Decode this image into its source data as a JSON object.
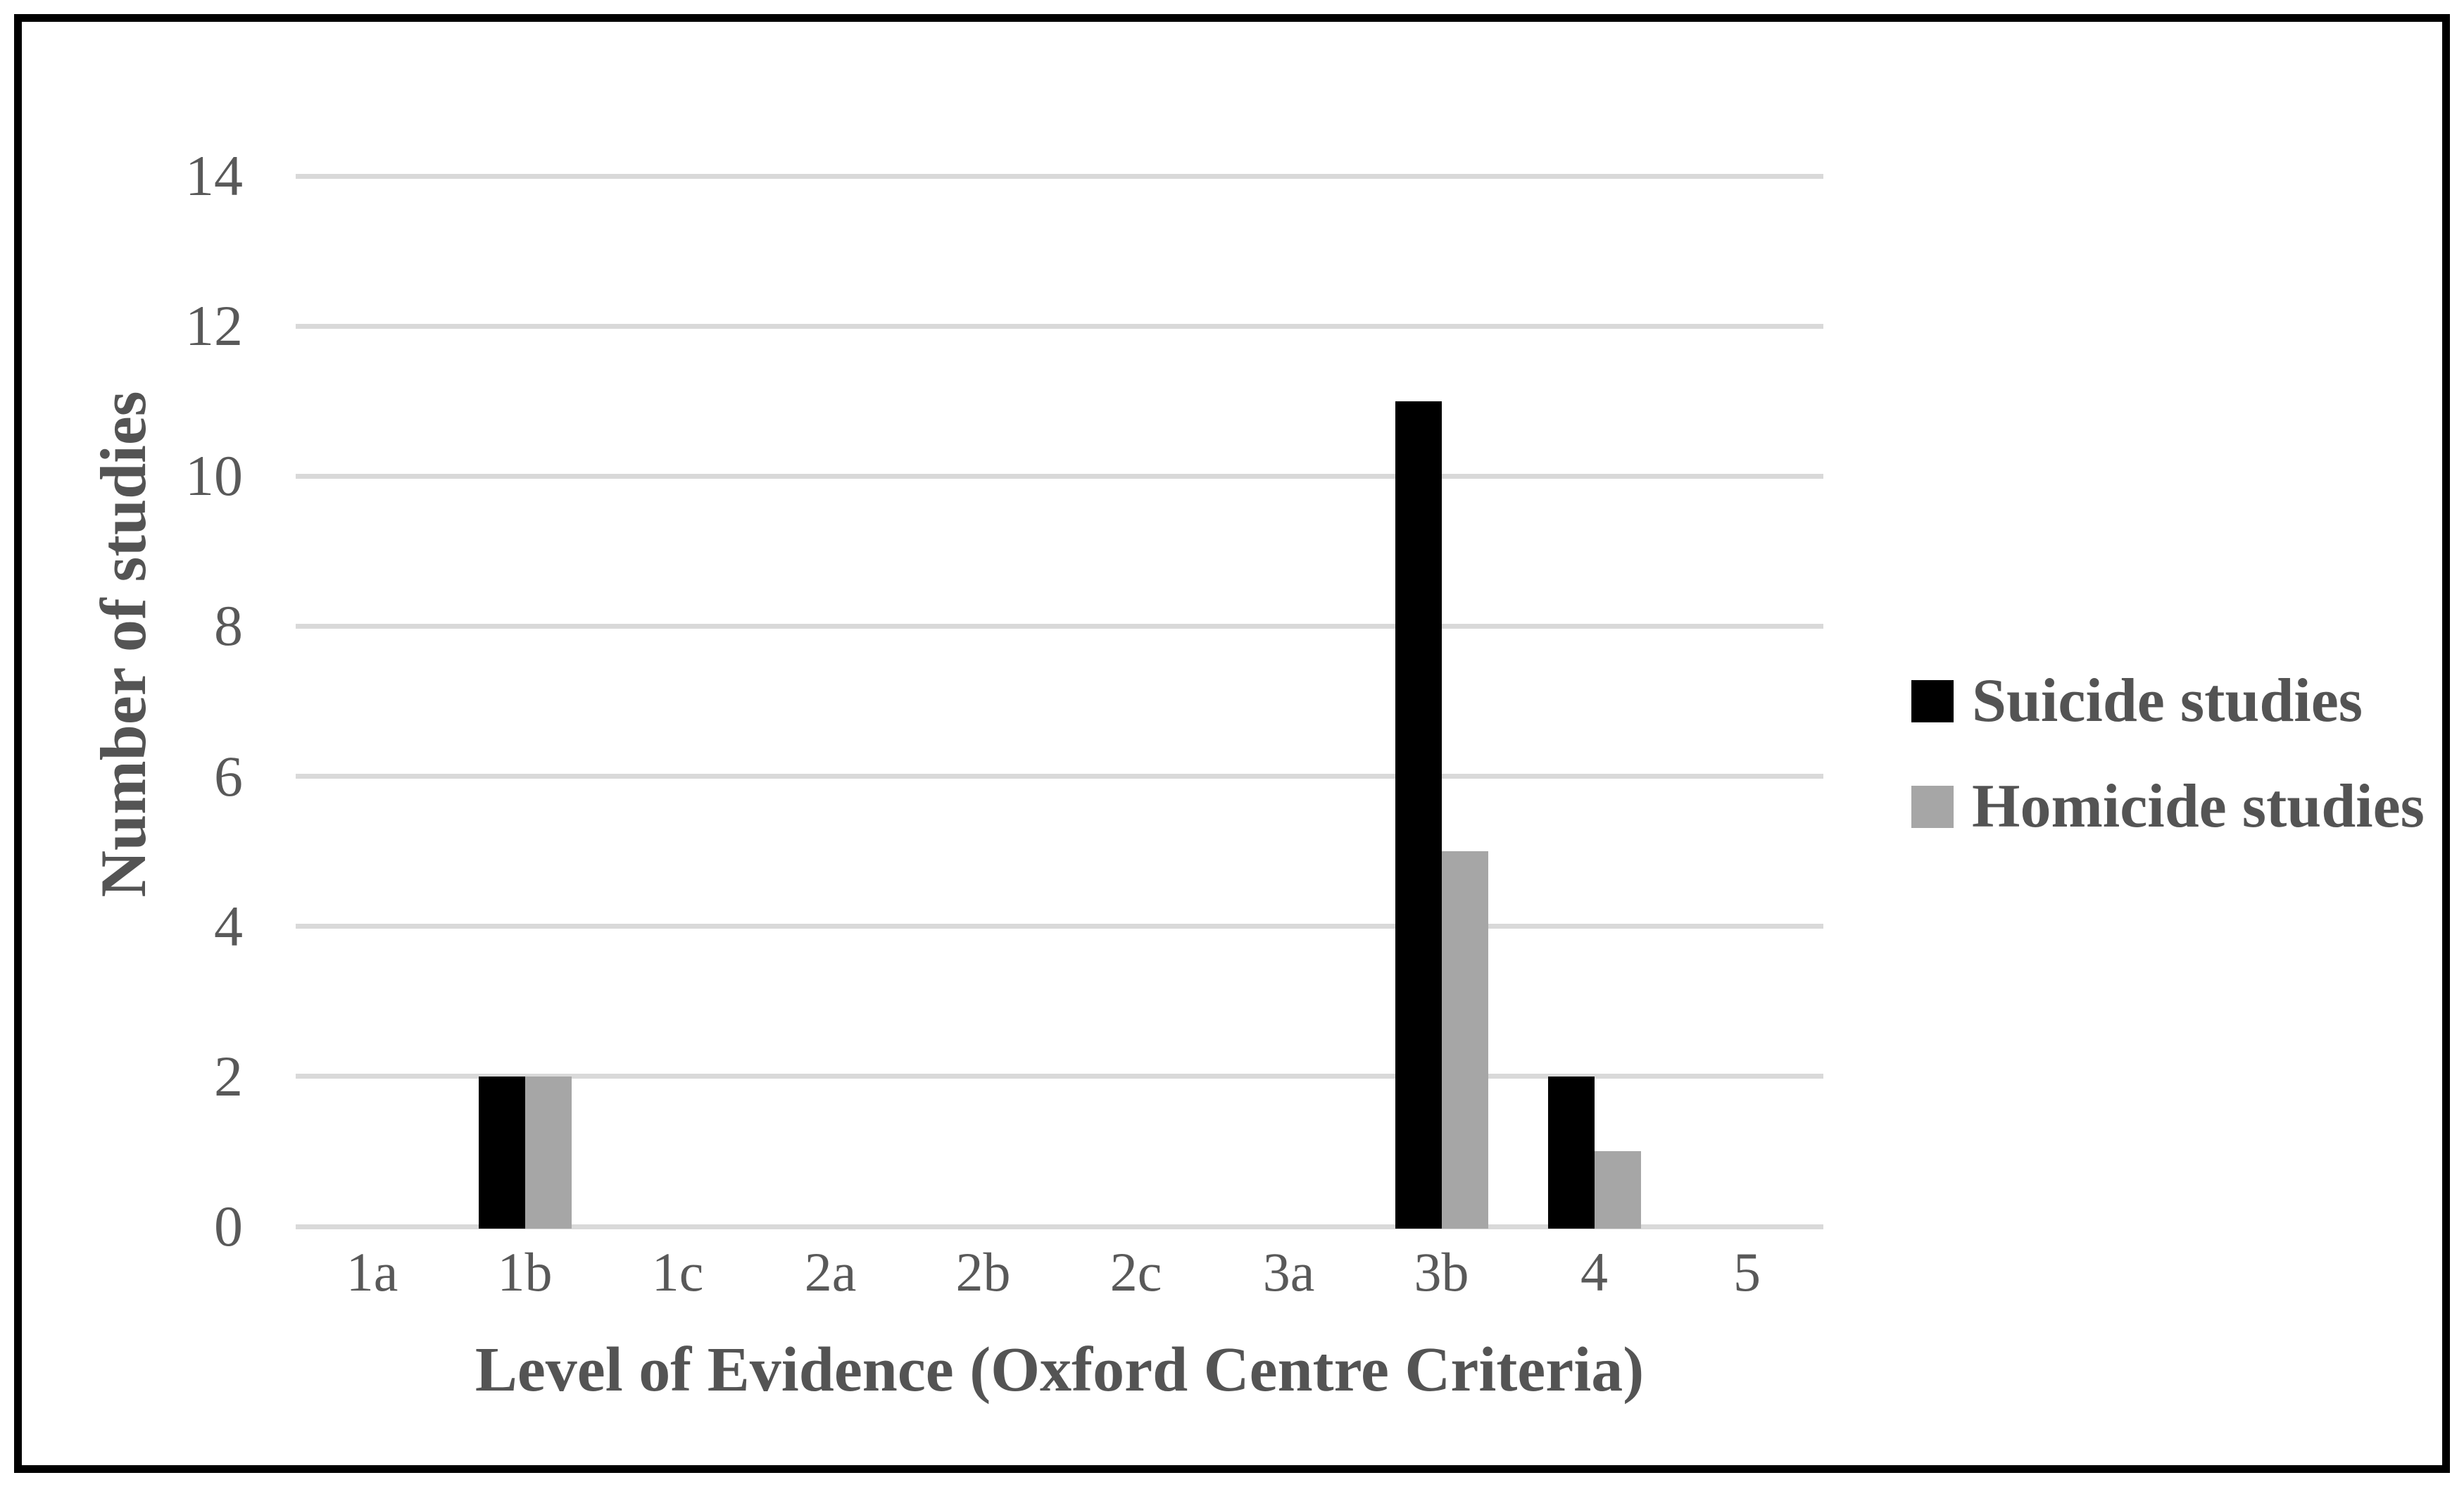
{
  "chart_data": {
    "type": "bar",
    "title": "",
    "categories": [
      "1a",
      "1b",
      "1c",
      "2a",
      "2b",
      "2c",
      "3a",
      "3b",
      "4",
      "5"
    ],
    "series": [
      {
        "name": "Suicide studies",
        "color": "#000000",
        "values": [
          0,
          2,
          0,
          0,
          0,
          0,
          0,
          11,
          2,
          0
        ]
      },
      {
        "name": "Homicide studies",
        "color": "#a6a6a6",
        "values": [
          0,
          2,
          0,
          0,
          0,
          0,
          0,
          5,
          1,
          0
        ]
      }
    ],
    "xlabel": "Level of Evidence (Oxford Centre Criteria)",
    "ylabel": "Number of studies",
    "ylim": [
      0,
      14
    ],
    "yticks": [
      0,
      2,
      4,
      6,
      8,
      10,
      12,
      14
    ],
    "grid": true,
    "legend_position": "right",
    "colors": {
      "gridline": "#d9d9d9",
      "tick_text": "#595959",
      "title_text": "#545454",
      "frame_border": "#000000",
      "background": "#ffffff"
    }
  }
}
